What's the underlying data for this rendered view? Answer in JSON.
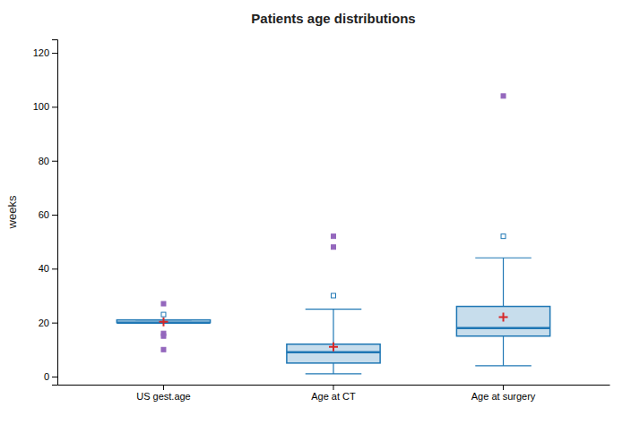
{
  "chart_data": {
    "type": "box",
    "title": "Patients age distributions",
    "ylabel": "weeks",
    "categories": [
      "US gest.age",
      "Age at CT",
      "Age at surgery"
    ],
    "ylim": [
      -3,
      125
    ],
    "yticks": [
      0,
      20,
      40,
      60,
      80,
      100,
      120
    ],
    "boxes": [
      {
        "q1": 20,
        "median": 20,
        "q3": 21,
        "mean": 20.3,
        "whisker_low": 20,
        "whisker_high": 21,
        "outliers_open": [
          23
        ],
        "outliers_filled": [
          27,
          16,
          15,
          10
        ]
      },
      {
        "q1": 5,
        "median": 9,
        "q3": 12,
        "mean": 11,
        "whisker_low": 1,
        "whisker_high": 25,
        "outliers_open": [
          30
        ],
        "outliers_filled": [
          48,
          52
        ]
      },
      {
        "q1": 15,
        "median": 18,
        "q3": 26,
        "mean": 22,
        "whisker_low": 4,
        "whisker_high": 44,
        "outliers_open": [
          52
        ],
        "outliers_filled": [
          104
        ]
      }
    ]
  }
}
